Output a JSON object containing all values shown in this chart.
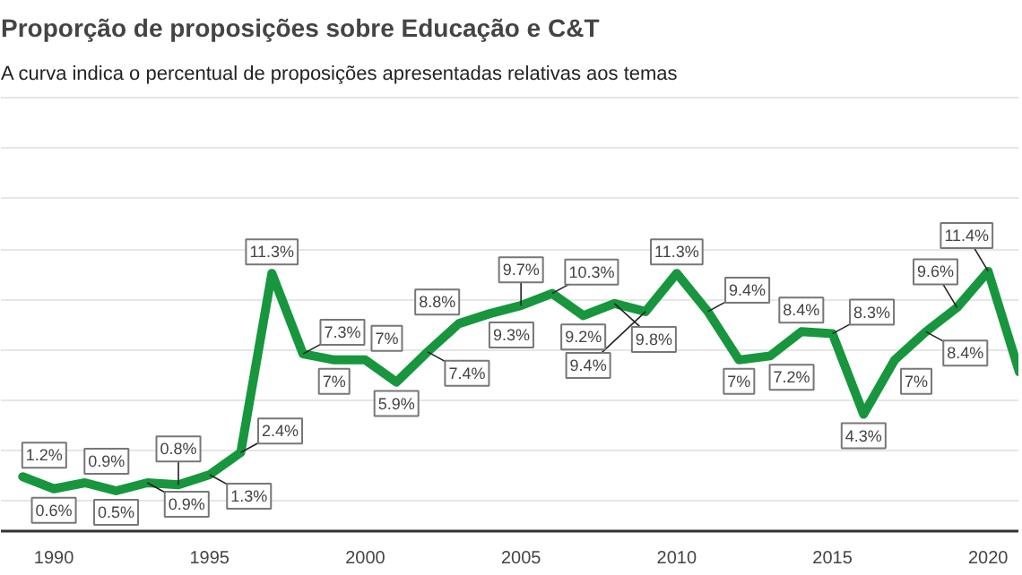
{
  "chart_data": {
    "type": "line",
    "title": "Proporção de proposições sobre Educação e C&T",
    "subtitle": "A curva indica o percentual de proposições apresentadas relativas aos temas",
    "x": [
      1989,
      1990,
      1991,
      1992,
      1993,
      1994,
      1995,
      1996,
      1997,
      1998,
      1999,
      2000,
      2001,
      2002,
      2003,
      2004,
      2005,
      2006,
      2007,
      2008,
      2009,
      2010,
      2011,
      2012,
      2013,
      2014,
      2015,
      2016,
      2017,
      2018,
      2019,
      2020,
      2021
    ],
    "series": [
      {
        "color": "#17963e",
        "values": [
          1.2,
          0.6,
          0.9,
          0.5,
          0.9,
          0.8,
          1.3,
          2.4,
          11.3,
          7.3,
          7,
          7,
          5.9,
          7.4,
          8.8,
          9.3,
          9.7,
          10.3,
          9.2,
          9.8,
          9.4,
          11.3,
          9.4,
          7,
          7.2,
          8.4,
          8.3,
          4.3,
          7,
          8.4,
          9.6,
          11.4,
          6.4
        ],
        "value_labels": [
          "1.2%",
          "0.6%",
          "0.9%",
          "0.5%",
          "0.9%",
          "0.8%",
          "1.3%",
          "2.4%",
          "11.3%",
          "7.3%",
          "7%",
          "7%",
          "5.9%",
          "7.4%",
          "8.8%",
          "9.3%",
          "9.7%",
          "10.3%",
          "9.2%",
          "9.8%",
          "9.4%",
          "11.3%",
          "9.4%",
          "7%",
          "7.2%",
          "8.4%",
          "8.3%",
          "4.3%",
          "7%",
          "8.4%",
          "9.6%",
          "11.4%",
          null
        ]
      }
    ],
    "xlim": [
      1988.3,
      2021
    ],
    "xticks": [
      1990,
      1995,
      2000,
      2005,
      2010,
      2015,
      2020
    ],
    "ylim": [
      -1.5,
      20.2
    ],
    "yticks": [
      {
        "value": 0,
        "label": null
      },
      {
        "value": 2.5,
        "label": null
      },
      {
        "value": 5,
        "label": null
      },
      {
        "value": 7.5,
        "label": null
      },
      {
        "value": 10,
        "label": null
      },
      {
        "value": 12.5,
        "label": null
      },
      {
        "value": 15,
        "label": null
      },
      {
        "value": 17.5,
        "label": null
      },
      {
        "value": 20,
        "label": null
      }
    ],
    "grid": "y",
    "tick_labels": "x",
    "line_style": "solid",
    "marker": "none"
  }
}
